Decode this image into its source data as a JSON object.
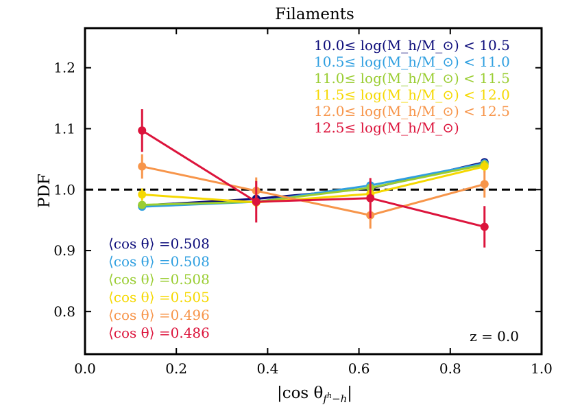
{
  "chart_data": {
    "type": "line",
    "title": "Filaments",
    "xlabel": "|cos θ_{f^h−h}|",
    "ylabel": "PDF",
    "xlim": [
      0.0,
      1.0
    ],
    "ylim": [
      0.73,
      1.265
    ],
    "xticks": [
      "0.0",
      "0.2",
      "0.4",
      "0.6",
      "0.8",
      "1.0"
    ],
    "yticks": [
      "0.8",
      "0.9",
      "1.0",
      "1.1",
      "1.2"
    ],
    "xtick_values": [
      0.0,
      0.2,
      0.4,
      0.6,
      0.8,
      1.0
    ],
    "ytick_values": [
      0.8,
      0.9,
      1.0,
      1.1,
      1.2
    ],
    "reference_line": 1.0,
    "redshift_label": "z = 0.0",
    "x": [
      0.125,
      0.375,
      0.625,
      0.875
    ],
    "series": [
      {
        "name": "10.0≤ log(M_h/M_⊙) < 10.5",
        "color": "#0c0c7a",
        "values": [
          0.974,
          0.985,
          1.002,
          1.045
        ],
        "errors": [
          0.005,
          0.005,
          0.005,
          0.005
        ],
        "mean_label": "⟨cos θ⟩ =0.508"
      },
      {
        "name": "10.5≤ log(M_h/M_⊙) < 11.0",
        "color": "#2f9fe0",
        "values": [
          0.972,
          0.98,
          1.007,
          1.043
        ],
        "errors": [
          0.004,
          0.004,
          0.004,
          0.004
        ],
        "mean_label": "⟨cos θ⟩ =0.508"
      },
      {
        "name": "11.0≤ log(M_h/M_⊙) < 11.5",
        "color": "#9acd32",
        "values": [
          0.975,
          0.98,
          1.003,
          1.041
        ],
        "errors": [
          0.005,
          0.005,
          0.005,
          0.005
        ],
        "mean_label": "⟨cos θ⟩ =0.508"
      },
      {
        "name": "11.5≤ log(M_h/M_⊙) < 12.0",
        "color": "#f5d800",
        "values": [
          0.992,
          0.979,
          0.993,
          1.038
        ],
        "errors": [
          0.01,
          0.01,
          0.01,
          0.01
        ],
        "mean_label": "⟨cos θ⟩ =0.505"
      },
      {
        "name": "12.0≤ log(M_h/M_⊙) < 12.5",
        "color": "#f7954a",
        "values": [
          1.038,
          0.998,
          0.958,
          1.009
        ],
        "errors": [
          0.02,
          0.022,
          0.022,
          0.022
        ],
        "mean_label": "⟨cos θ⟩ =0.496"
      },
      {
        "name": "12.5≤ log(M_h/M_⊙)",
        "color": "#dc143c",
        "values": [
          1.097,
          0.98,
          0.986,
          0.939
        ],
        "errors": [
          0.035,
          0.034,
          0.033,
          0.034
        ],
        "mean_label": "⟨cos θ⟩ =0.486"
      }
    ]
  }
}
